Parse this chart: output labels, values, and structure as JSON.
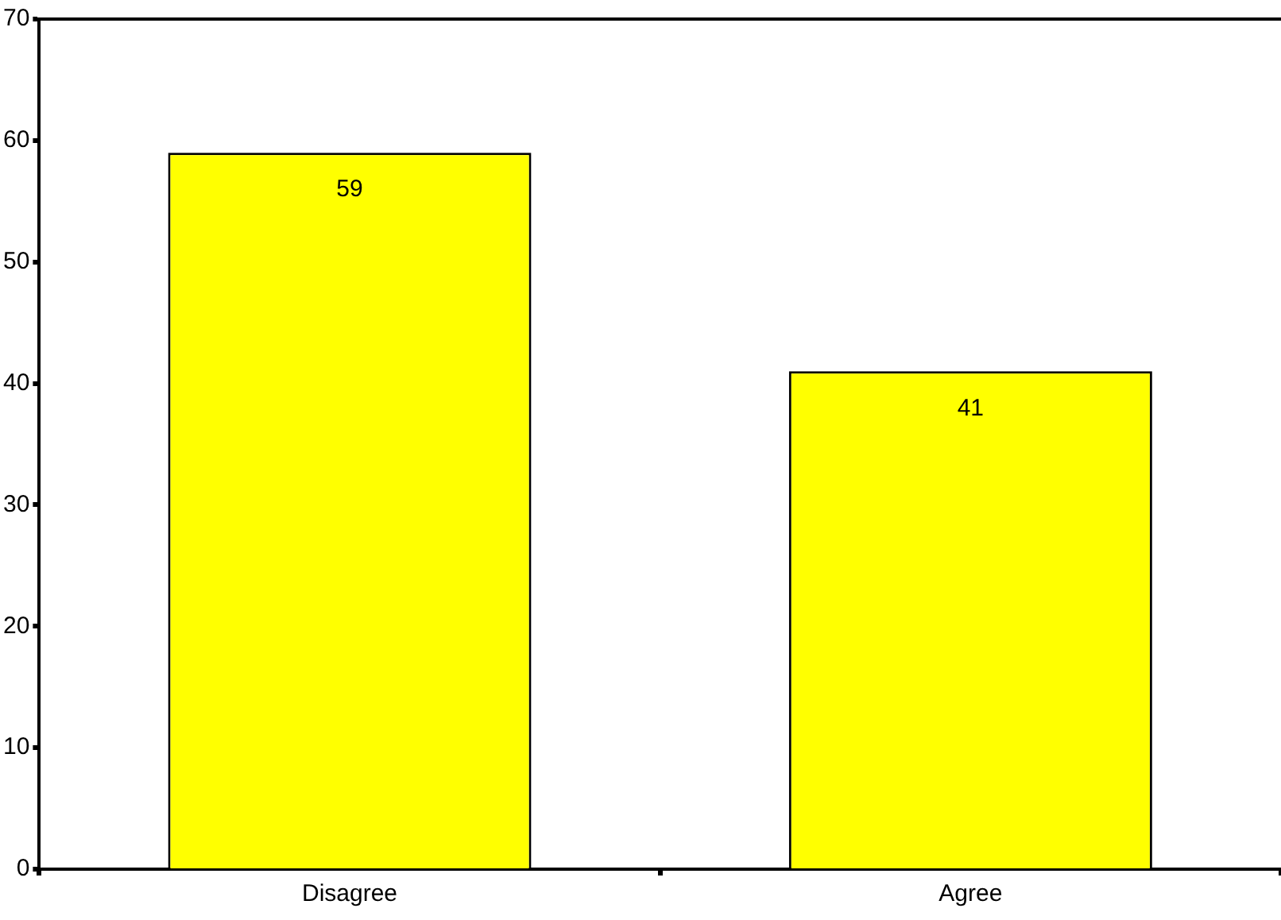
{
  "chart_data": {
    "type": "bar",
    "categories": [
      "Disagree",
      "Agree"
    ],
    "values": [
      59,
      41
    ],
    "color": "#ffff00",
    "ylim": [
      0,
      70
    ],
    "yticks": [
      0,
      10,
      20,
      30,
      40,
      50,
      60,
      70
    ],
    "grid": false,
    "legend": false,
    "data_labels": true
  }
}
